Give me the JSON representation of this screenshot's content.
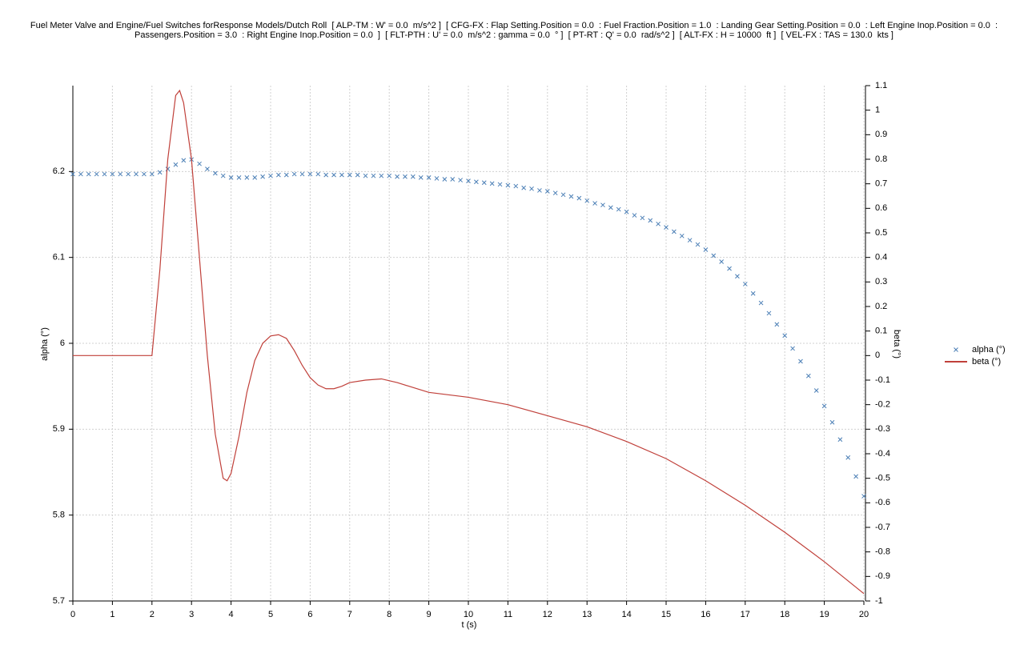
{
  "chart_data": {
    "type": "line",
    "title": [
      "Fuel Meter Valve and Engine/Fuel Switches forResponse Models/Dutch Roll  [ ALP-TM : W' = 0.0  m/s^2 ]  [ CFG-FX : Flap Setting.Position = 0.0  : Fuel Fraction.Position = 1.0  : Landing Gear Setting.Position = 0.0  : Left Engine Inop.Position = 0.0  :",
      "Passengers.Position = 3.0  : Right Engine Inop.Position = 0.0  ]  [ FLT-PTH : U' = 0.0  m/s^2 : gamma = 0.0  ° ]  [ PT-RT : Q' = 0.0  rad/s^2 ]  [ ALT-FX : H = 10000  ft ]  [ VEL-FX : TAS = 130.0  kts ]"
    ],
    "xlabel": "t (s)",
    "ylabel": "alpha (°)",
    "y2label": "beta (°)",
    "xlim": [
      0,
      20
    ],
    "xticks": [
      0,
      1,
      2,
      3,
      4,
      5,
      6,
      7,
      8,
      9,
      10,
      11,
      12,
      13,
      14,
      15,
      16,
      17,
      18,
      19,
      20
    ],
    "ylim": [
      5.7,
      6.3
    ],
    "yticks": [
      5.7,
      5.8,
      5.9,
      6,
      6.1,
      6.2
    ],
    "y2lim": [
      -1,
      1.1
    ],
    "y2ticks": [
      -1,
      -0.9,
      -0.8,
      -0.7,
      -0.6,
      -0.5,
      -0.4,
      -0.3,
      -0.2,
      -0.1,
      0,
      0.1,
      0.2,
      0.3,
      0.4,
      0.5,
      0.6,
      0.7,
      0.8,
      0.9,
      1,
      1.1
    ],
    "grid": true,
    "legend": "right",
    "series": [
      {
        "name": "alpha (°)",
        "color": "#4a7eb5",
        "style": "x",
        "x": [
          0,
          0.2,
          0.4,
          0.6,
          0.8,
          1,
          1.2,
          1.4,
          1.6,
          1.8,
          2,
          2.2,
          2.4,
          2.6,
          2.8,
          3,
          3.2,
          3.4,
          3.6,
          3.8,
          4,
          4.2,
          4.4,
          4.6,
          4.8,
          5,
          5.2,
          5.4,
          5.6,
          5.8,
          6,
          6.2,
          6.4,
          6.6,
          6.8,
          7,
          7.2,
          7.4,
          7.6,
          7.8,
          8,
          8.2,
          8.4,
          8.6,
          8.8,
          9,
          9.2,
          9.4,
          9.6,
          9.8,
          10,
          10.2,
          10.4,
          10.6,
          10.8,
          11,
          11.2,
          11.4,
          11.6,
          11.8,
          12,
          12.2,
          12.4,
          12.6,
          12.8,
          13,
          13.2,
          13.4,
          13.6,
          13.8,
          14,
          14.2,
          14.4,
          14.6,
          14.8,
          15,
          15.2,
          15.4,
          15.6,
          15.8,
          16,
          16.2,
          16.4,
          16.6,
          16.8,
          17,
          17.2,
          17.4,
          17.6,
          17.8,
          18,
          18.2,
          18.4,
          18.6,
          18.8,
          19,
          19.2,
          19.4,
          19.6,
          19.8,
          20
        ],
        "values": [
          6.197,
          6.197,
          6.197,
          6.197,
          6.197,
          6.197,
          6.197,
          6.197,
          6.197,
          6.197,
          6.197,
          6.199,
          6.203,
          6.208,
          6.213,
          6.214,
          6.209,
          6.203,
          6.198,
          6.195,
          6.193,
          6.193,
          6.193,
          6.193,
          6.194,
          6.195,
          6.196,
          6.196,
          6.197,
          6.197,
          6.197,
          6.197,
          6.196,
          6.196,
          6.196,
          6.196,
          6.196,
          6.195,
          6.195,
          6.195,
          6.195,
          6.194,
          6.194,
          6.194,
          6.193,
          6.193,
          6.192,
          6.191,
          6.191,
          6.19,
          6.189,
          6.188,
          6.187,
          6.186,
          6.185,
          6.184,
          6.183,
          6.181,
          6.18,
          6.178,
          6.177,
          6.175,
          6.173,
          6.171,
          6.169,
          6.166,
          6.163,
          6.161,
          6.158,
          6.156,
          6.153,
          6.149,
          6.146,
          6.143,
          6.139,
          6.135,
          6.13,
          6.125,
          6.12,
          6.115,
          6.109,
          6.102,
          6.095,
          6.087,
          6.078,
          6.069,
          6.058,
          6.047,
          6.035,
          6.022,
          6.009,
          5.994,
          5.979,
          5.962,
          5.945,
          5.927,
          5.908,
          5.888,
          5.867,
          5.845,
          5.822
        ]
      },
      {
        "name": "beta (°)",
        "color": "#c0403a",
        "style": "line",
        "axis": "y2",
        "x": [
          0,
          1,
          2,
          2.2,
          2.4,
          2.6,
          2.7,
          2.8,
          3,
          3.2,
          3.4,
          3.6,
          3.8,
          3.9,
          4,
          4.2,
          4.4,
          4.6,
          4.8,
          5,
          5.2,
          5.4,
          5.6,
          5.8,
          6,
          6.2,
          6.4,
          6.6,
          6.8,
          7,
          7.4,
          7.8,
          8.2,
          8.6,
          9,
          10,
          11,
          12,
          13,
          14,
          15,
          16,
          17,
          18,
          19,
          20
        ],
        "values": [
          0,
          0,
          0,
          0.35,
          0.8,
          1.06,
          1.08,
          1.03,
          0.8,
          0.4,
          0,
          -0.32,
          -0.5,
          -0.51,
          -0.48,
          -0.33,
          -0.15,
          -0.02,
          0.05,
          0.08,
          0.085,
          0.07,
          0.02,
          -0.04,
          -0.09,
          -0.12,
          -0.135,
          -0.135,
          -0.125,
          -0.11,
          -0.1,
          -0.095,
          -0.11,
          -0.13,
          -0.15,
          -0.17,
          -0.2,
          -0.245,
          -0.29,
          -0.35,
          -0.42,
          -0.51,
          -0.61,
          -0.72,
          -0.84,
          -0.97
        ]
      }
    ]
  }
}
